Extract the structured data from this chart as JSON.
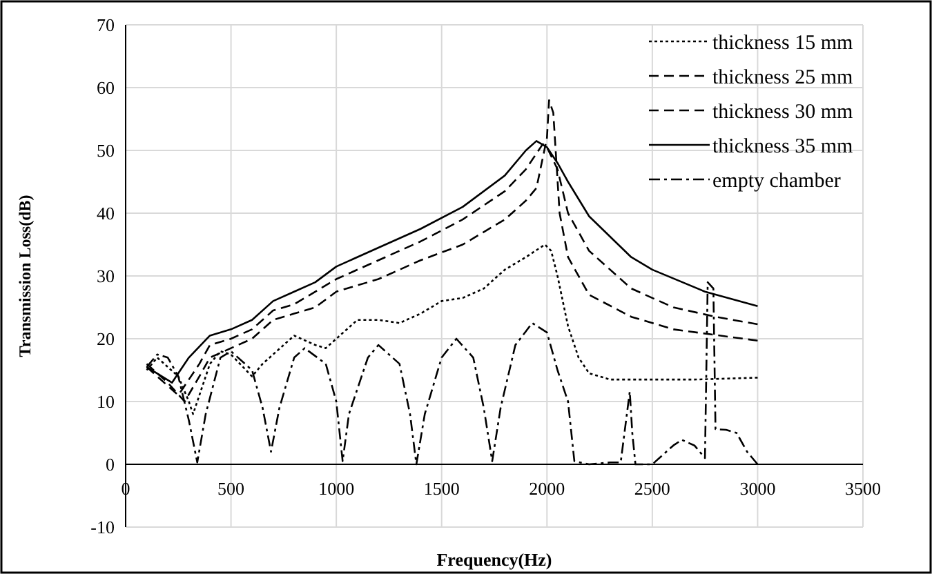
{
  "chart_data": {
    "type": "line",
    "xlabel": "Frequency(Hz)",
    "ylabel": "Transmission Loss(dB)",
    "xlim": [
      0,
      3500
    ],
    "xticks": [
      0,
      500,
      1000,
      1500,
      2000,
      2500,
      3000,
      3500
    ],
    "ylim": [
      -10,
      70
    ],
    "yticks": [
      -10,
      0,
      10,
      20,
      30,
      40,
      50,
      60,
      70
    ],
    "grid": true,
    "legend": "top right",
    "series": [
      {
        "name": "thickness 15 mm",
        "color": "#000000",
        "line_style": "dotted",
        "x": [
          100,
          150,
          250,
          300,
          320,
          400,
          450,
          500,
          600,
          650,
          800,
          900,
          950,
          1000,
          1100,
          1200,
          1300,
          1400,
          1500,
          1600,
          1700,
          1800,
          1900,
          1990,
          2020,
          2050,
          2100,
          2150,
          2200,
          2300,
          2500,
          2700,
          3000
        ],
        "values": [
          15,
          17,
          14,
          10,
          8,
          16,
          18,
          17.5,
          14,
          16,
          20.5,
          19,
          18.5,
          20,
          23,
          23,
          22.5,
          24,
          26,
          26.5,
          28,
          31,
          33,
          35,
          34,
          30,
          22,
          17,
          14.5,
          13.5,
          13.5,
          13.5,
          13.8
        ]
      },
      {
        "name": "thickness 25 mm",
        "color": "#000000",
        "line_style": "dashed",
        "x": [
          100,
          200,
          280,
          350,
          400,
          500,
          600,
          700,
          800,
          900,
          1000,
          1200,
          1400,
          1600,
          1800,
          1900,
          1950,
          2000,
          2010,
          2030,
          2060,
          2100,
          2200,
          2400,
          2600,
          3000
        ],
        "values": [
          16,
          13,
          10,
          14,
          17,
          18.5,
          20,
          23,
          24,
          25,
          27.5,
          29.5,
          32.5,
          35,
          39,
          42,
          44,
          52,
          58,
          56,
          40,
          33,
          27,
          23.5,
          21.5,
          19.7
        ]
      },
      {
        "name": "thickness 30 mm",
        "color": "#000000",
        "line_style": "dashed",
        "x": [
          100,
          250,
          350,
          400,
          500,
          600,
          700,
          800,
          1000,
          1200,
          1400,
          1600,
          1800,
          1900,
          1980,
          2000,
          2050,
          2100,
          2200,
          2400,
          2600,
          2800,
          3000
        ],
        "values": [
          15.5,
          11,
          16,
          19,
          20,
          21.5,
          24.5,
          25.5,
          29.5,
          32.5,
          35.5,
          39,
          43.5,
          47,
          51,
          50.5,
          47,
          40,
          34,
          28,
          25,
          23.5,
          22.3
        ]
      },
      {
        "name": "thickness 35 mm",
        "color": "#000000",
        "line_style": "solid",
        "x": [
          100,
          220,
          300,
          400,
          500,
          600,
          700,
          800,
          900,
          1000,
          1200,
          1400,
          1600,
          1800,
          1900,
          1950,
          2000,
          2050,
          2100,
          2200,
          2400,
          2500,
          2750,
          3000
        ],
        "values": [
          15.5,
          13,
          17,
          20.5,
          21.5,
          23,
          26,
          27.5,
          29,
          31.5,
          34.5,
          37.5,
          41,
          46,
          50,
          51.5,
          50.5,
          48,
          45,
          39.5,
          33,
          31,
          27.5,
          25.2
        ]
      },
      {
        "name": "empty chamber",
        "color": "#000000",
        "line_style": "dashdot",
        "x": [
          100,
          150,
          200,
          250,
          300,
          340,
          380,
          450,
          500,
          600,
          650,
          690,
          730,
          800,
          850,
          950,
          1000,
          1030,
          1060,
          1150,
          1200,
          1300,
          1350,
          1380,
          1420,
          1500,
          1570,
          1650,
          1700,
          1740,
          1780,
          1850,
          1930,
          2000,
          2050,
          2080,
          2100,
          2130,
          2200,
          2300,
          2350,
          2393,
          2405,
          2420,
          2500,
          2600,
          2640,
          2700,
          2750,
          2763,
          2790,
          2800,
          2850,
          2900,
          2950,
          3000
        ],
        "values": [
          15.5,
          17.5,
          17,
          14,
          7,
          0.3,
          8,
          17,
          18,
          15,
          9,
          2,
          9,
          17,
          18.5,
          16,
          10,
          0.5,
          8,
          17,
          19,
          16,
          8,
          0,
          8,
          17,
          20,
          17,
          9,
          0.5,
          9,
          19,
          22.5,
          21,
          15,
          12,
          10,
          0.5,
          0,
          0.3,
          0.3,
          11.6,
          5,
          0,
          0,
          3,
          3.9,
          3,
          1,
          29,
          28,
          5.6,
          5.5,
          5,
          2,
          0
        ]
      }
    ]
  }
}
